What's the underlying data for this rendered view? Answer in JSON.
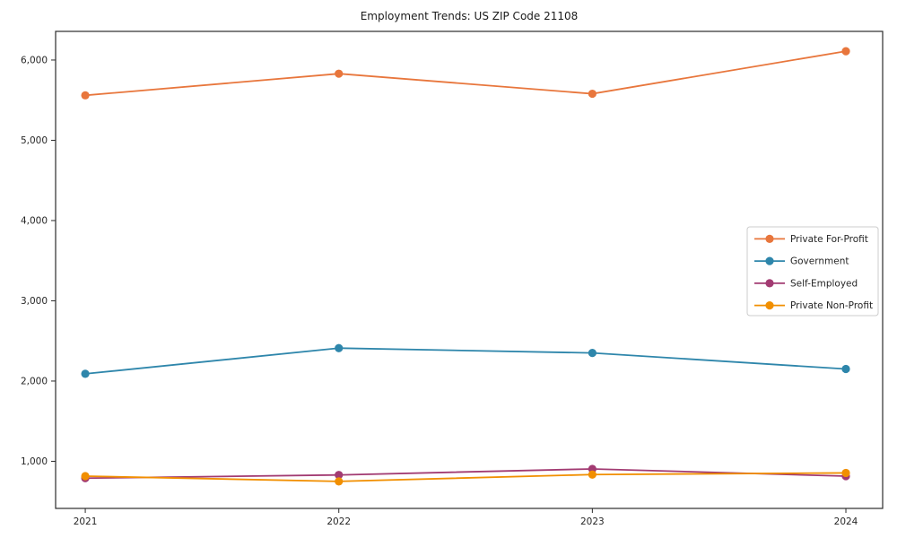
{
  "chart_data": {
    "type": "line",
    "title": "Employment Trends: US ZIP Code 21108",
    "xlabel": "",
    "ylabel": "",
    "x": [
      2021,
      2022,
      2023,
      2024
    ],
    "xlim": [
      2020.883,
      2024.145
    ],
    "ylim": [
      413,
      6357
    ],
    "grid": false,
    "legend_position": "center right",
    "xticks": {
      "values": [
        2021,
        2022,
        2023,
        2024
      ],
      "labels": [
        "2021",
        "2022",
        "2023",
        "2024"
      ]
    },
    "yticks": {
      "values": [
        1000,
        2000,
        3000,
        4000,
        5000,
        6000
      ],
      "labels": [
        "1,000",
        "2,000",
        "3,000",
        "4,000",
        "5,000",
        "6,000"
      ]
    },
    "series": [
      {
        "name": "Private For-Profit",
        "color": "#E8763C",
        "values": [
          5560,
          5830,
          5580,
          6110
        ]
      },
      {
        "name": "Government",
        "color": "#2E86AB",
        "values": [
          2090,
          2410,
          2350,
          2150
        ]
      },
      {
        "name": "Self-Employed",
        "color": "#A23B72",
        "values": [
          790,
          830,
          905,
          815
        ]
      },
      {
        "name": "Private Non-Profit",
        "color": "#F18F01",
        "values": [
          815,
          750,
          835,
          855
        ]
      }
    ],
    "axis_color": "#2b2b2b"
  }
}
